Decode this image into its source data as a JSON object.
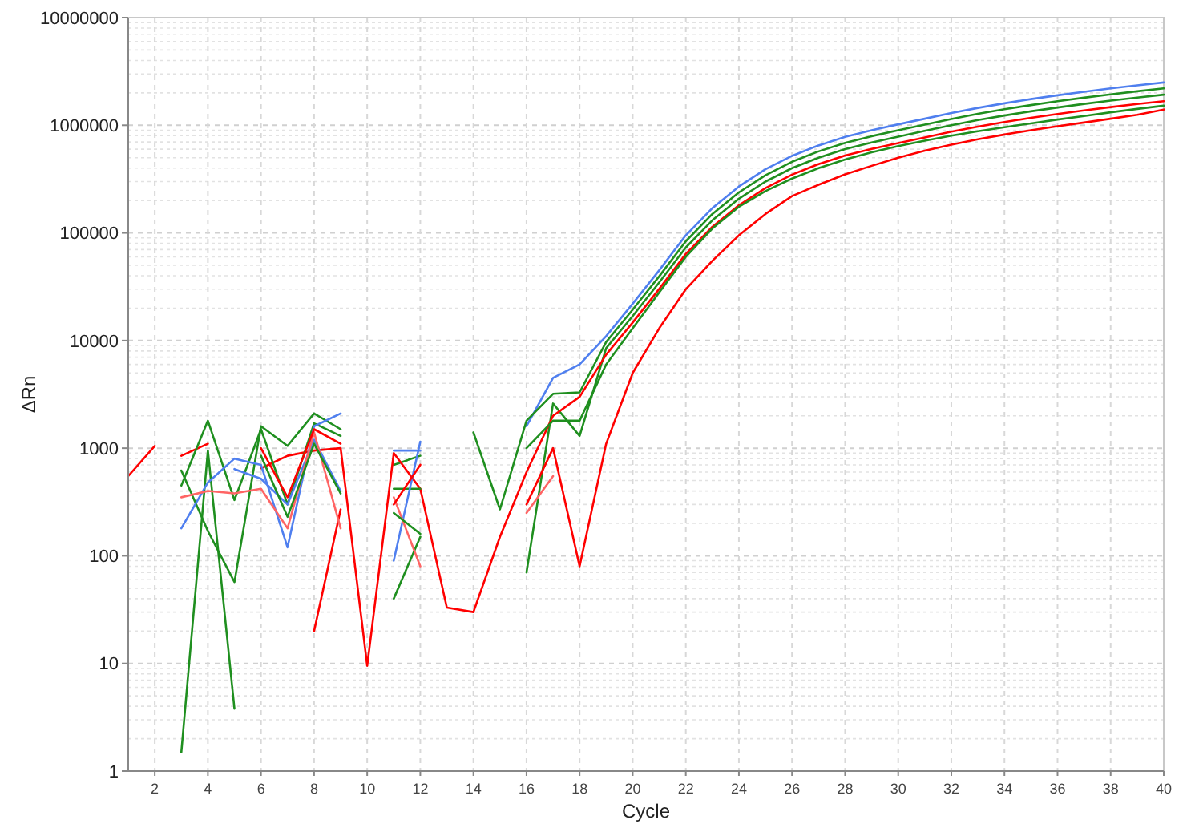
{
  "chart_data": {
    "type": "line",
    "xlabel": "Cycle",
    "ylabel": "ΔRn",
    "log": "y",
    "grid": true,
    "line_style": "solid",
    "marker": "none",
    "x": [
      1,
      2,
      3,
      4,
      5,
      6,
      7,
      8,
      9,
      10,
      11,
      12,
      13,
      14,
      15,
      16,
      17,
      18,
      19,
      20,
      21,
      22,
      23,
      24,
      25,
      26,
      27,
      28,
      29,
      30,
      31,
      32,
      33,
      34,
      35,
      36,
      37,
      38,
      39,
      40
    ],
    "xlim": [
      1,
      40
    ],
    "xticks": [
      2,
      4,
      6,
      8,
      10,
      12,
      14,
      16,
      18,
      20,
      22,
      24,
      26,
      28,
      30,
      32,
      34,
      36,
      38,
      40
    ],
    "ylim": [
      1,
      10000000
    ],
    "yticks": [
      1,
      10,
      100,
      1000,
      10000,
      100000,
      1000000,
      10000000
    ],
    "series": [
      {
        "color": "#4f7fef",
        "values": [
          null,
          null,
          null,
          null,
          null,
          null,
          null,
          null,
          null,
          null,
          null,
          null,
          null,
          null,
          null,
          1600,
          4500,
          6000,
          11000,
          22000,
          45000,
          95000,
          170000,
          270000,
          390000,
          520000,
          650000,
          780000,
          900000,
          1020000,
          1150000,
          1300000,
          1450000,
          1600000,
          1750000,
          1900000,
          2050000,
          2200000,
          2350000,
          2500000
        ]
      },
      {
        "color": "#1f8f1f",
        "values": [
          null,
          null,
          1.5,
          950,
          3.8,
          null,
          null,
          null,
          null,
          null,
          40,
          150,
          null,
          1400,
          270,
          1800,
          3200,
          3300,
          9700,
          19400,
          39600,
          83600,
          150000,
          238000,
          343000,
          458000,
          572000,
          686000,
          792000,
          898000,
          1012000,
          1144000,
          1276000,
          1408000,
          1540000,
          1672000,
          1804000,
          1936000,
          2068000,
          2200000
        ]
      },
      {
        "color": "#1f8f1f",
        "values": [
          null,
          null,
          620,
          170,
          57,
          1600,
          1050,
          2100,
          1500,
          null,
          700,
          850,
          null,
          null,
          null,
          70,
          2600,
          1300,
          8500,
          16900,
          34700,
          73200,
          131000,
          208000,
          300000,
          400000,
          500000,
          600000,
          693000,
          785000,
          886000,
          1001000,
          1117000,
          1232000,
          1348000,
          1463000,
          1579000,
          1694000,
          1810000,
          1925000
        ]
      },
      {
        "color": "#ff0000",
        "values": [
          null,
          null,
          850,
          1100,
          null,
          650,
          850,
          950,
          1000,
          9.5,
          900,
          420,
          33,
          30,
          150,
          600,
          2000,
          3000,
          7400,
          14700,
          30200,
          63700,
          114000,
          181000,
          261000,
          348000,
          436000,
          523000,
          603000,
          683000,
          771000,
          871000,
          972000,
          1072000,
          1173000,
          1273000,
          1374000,
          1474000,
          1575000,
          1675000
        ]
      },
      {
        "color": "#1f8f1f",
        "values": [
          null,
          null,
          450,
          1800,
          330,
          1500,
          300,
          1700,
          1300,
          null,
          420,
          420,
          null,
          null,
          null,
          1000,
          1800,
          1800,
          6000,
          13000,
          28000,
          60000,
          110000,
          175000,
          245000,
          320000,
          400000,
          480000,
          560000,
          640000,
          720000,
          800000,
          880000,
          960000,
          1040000,
          1130000,
          1220000,
          1320000,
          1420000,
          1520000
        ]
      },
      {
        "color": "#ff0000",
        "values": [
          550,
          1050,
          null,
          null,
          null,
          null,
          null,
          20,
          270,
          null,
          null,
          null,
          null,
          null,
          null,
          300,
          1000,
          80,
          1100,
          5000,
          13000,
          30000,
          55000,
          95000,
          150000,
          220000,
          280000,
          350000,
          420000,
          500000,
          580000,
          660000,
          740000,
          820000,
          900000,
          980000,
          1060000,
          1150000,
          1250000,
          1400000
        ]
      },
      {
        "color": "#4f7fef",
        "values": [
          null,
          null,
          180,
          480,
          800,
          700,
          120,
          1600,
          2100,
          null,
          90,
          1150,
          null,
          null,
          null,
          null,
          null,
          null,
          null,
          null,
          null,
          null,
          null,
          null,
          null,
          null,
          null,
          null,
          null,
          null,
          null,
          null,
          null,
          null,
          null,
          null,
          null,
          null,
          null,
          null
        ]
      },
      {
        "color": "#4f7fef",
        "values": [
          null,
          null,
          null,
          null,
          640,
          520,
          300,
          1200,
          400,
          null,
          950,
          950,
          null,
          null,
          null,
          null,
          null,
          null,
          null,
          null,
          null,
          null,
          null,
          null,
          null,
          null,
          null,
          null,
          null,
          null,
          null,
          null,
          null,
          null,
          null,
          null,
          null,
          null,
          null,
          null
        ]
      },
      {
        "color": "#ff6464",
        "values": [
          null,
          null,
          350,
          400,
          380,
          420,
          180,
          1400,
          180,
          null,
          350,
          80,
          null,
          null,
          null,
          250,
          550,
          null,
          null,
          null,
          null,
          null,
          null,
          null,
          null,
          null,
          null,
          null,
          null,
          null,
          null,
          null,
          null,
          null,
          null,
          null,
          null,
          null,
          null,
          null
        ]
      },
      {
        "color": "#ff0000",
        "values": [
          null,
          null,
          null,
          null,
          null,
          1000,
          350,
          1500,
          1100,
          null,
          300,
          700,
          null,
          null,
          null,
          null,
          null,
          null,
          null,
          null,
          null,
          null,
          null,
          null,
          null,
          null,
          null,
          null,
          null,
          null,
          null,
          null,
          null,
          null,
          null,
          null,
          null,
          null,
          null,
          null
        ]
      },
      {
        "color": "#1f8f1f",
        "values": [
          null,
          null,
          null,
          null,
          null,
          850,
          230,
          1100,
          380,
          null,
          250,
          160,
          null,
          null,
          null,
          null,
          null,
          null,
          null,
          null,
          null,
          null,
          null,
          null,
          null,
          null,
          null,
          null,
          null,
          null,
          null,
          null,
          null,
          null,
          null,
          null,
          null,
          null,
          null,
          null
        ]
      }
    ]
  }
}
